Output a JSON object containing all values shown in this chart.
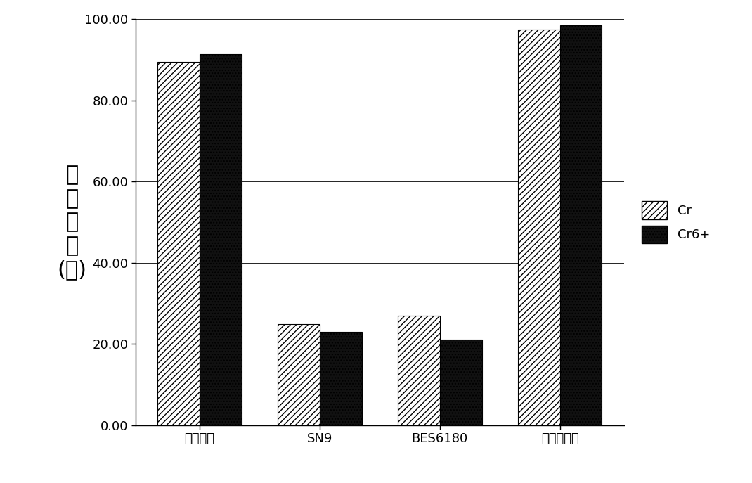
{
  "categories": [
    "石硫合剂",
    "SN9",
    "BES6180",
    "本发明产品"
  ],
  "cr_values": [
    89.5,
    24.8,
    27.0,
    97.5
  ],
  "cr6_values": [
    91.5,
    23.0,
    21.0,
    98.5
  ],
  "ylabel_lines": [
    "稳",
    "定",
    "化",
    "率",
    "(％)"
  ],
  "ylim": [
    0,
    100
  ],
  "yticks": [
    0.0,
    20.0,
    40.0,
    60.0,
    80.0,
    100.0
  ],
  "legend_cr": "Cr",
  "legend_cr6": "Cr6+",
  "bar_width": 0.35,
  "hatch_cr": "////",
  "hatch_cr6": "....",
  "color_cr": "#ffffff",
  "color_cr6": "#111111",
  "edgecolor": "#000000",
  "background_color": "#ffffff",
  "figsize": [
    10.7,
    6.87
  ],
  "dpi": 100
}
